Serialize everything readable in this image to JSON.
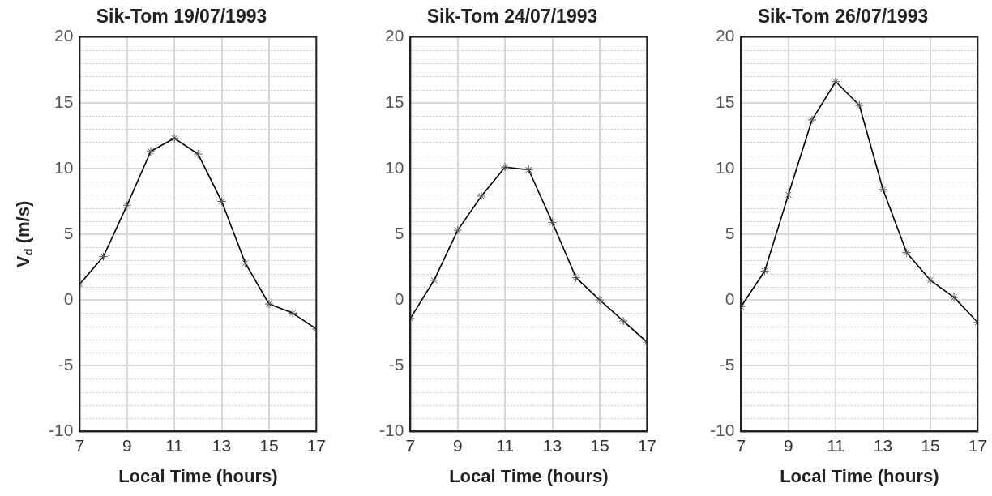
{
  "chart_data": [
    {
      "type": "line",
      "title": "Sik-Tom 19/07/1993",
      "xlabel": "Local Time (hours)",
      "ylabel": "V$_{d}$ (m/s)",
      "x": [
        7,
        8,
        9,
        10,
        11,
        12,
        13,
        14,
        15,
        16,
        17
      ],
      "series": [
        {
          "color": "#000000",
          "values": [
            1.2,
            3.3,
            7.2,
            11.3,
            12.3,
            11.1,
            7.5,
            2.8,
            -0.3,
            -1.0,
            -2.2
          ]
        }
      ],
      "xlim": [
        7,
        17
      ],
      "xticks": [
        7,
        9,
        11,
        13,
        15,
        17
      ],
      "ylim": [
        -10,
        20
      ],
      "yticks": [
        -10,
        -5,
        0,
        5,
        10,
        15,
        20
      ],
      "grid": true,
      "marker": "cross",
      "line_style": "solid"
    },
    {
      "type": "line",
      "title": "Sik-Tom 24/07/1993",
      "xlabel": "Local Time (hours)",
      "x": [
        7,
        8,
        9,
        10,
        11,
        12,
        13,
        14,
        15,
        16,
        17
      ],
      "series": [
        {
          "color": "#000000",
          "values": [
            -1.4,
            1.5,
            5.3,
            7.9,
            10.1,
            9.9,
            5.9,
            1.7,
            0,
            -1.6,
            -3.2
          ]
        }
      ],
      "xlim": [
        7,
        17
      ],
      "xticks": [
        7,
        9,
        11,
        13,
        15,
        17
      ],
      "ylim": [
        -10,
        20
      ],
      "yticks": [
        -10,
        -5,
        0,
        5,
        10,
        15,
        20
      ],
      "grid": true,
      "marker": "cross",
      "line_style": "solid"
    },
    {
      "type": "line",
      "title": "Sik-Tom 26/07/1993",
      "xlabel": "Local Time (hours)",
      "x": [
        7,
        8,
        9,
        10,
        11,
        12,
        13,
        14,
        15,
        16,
        17
      ],
      "series": [
        {
          "color": "#000000",
          "values": [
            -0.5,
            2.2,
            8.0,
            13.7,
            16.6,
            14.8,
            8.4,
            3.6,
            1.5,
            0.2,
            -1.7
          ]
        }
      ],
      "xlim": [
        7,
        17
      ],
      "xticks": [
        7,
        9,
        11,
        13,
        15,
        17
      ],
      "ylim": [
        -10,
        20
      ],
      "yticks": [
        -10,
        -5,
        0,
        5,
        10,
        15,
        20
      ],
      "grid": true,
      "marker": "cross",
      "line_style": "solid"
    }
  ]
}
